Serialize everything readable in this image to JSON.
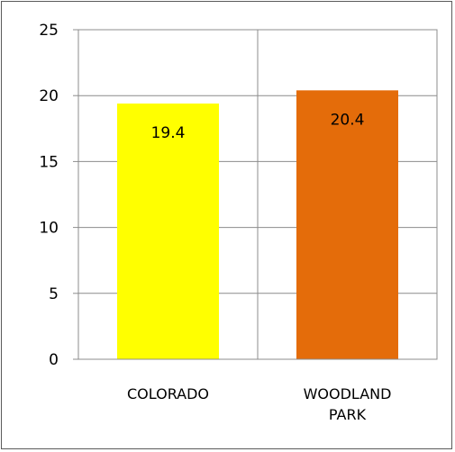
{
  "chart_data": {
    "type": "bar",
    "categories": [
      "COLORADO",
      "WOODLAND PARK"
    ],
    "category_lines": [
      [
        "COLORADO"
      ],
      [
        "WOODLAND",
        "PARK"
      ]
    ],
    "values": [
      19.4,
      20.4
    ],
    "data_labels": [
      "19.4",
      "20.4"
    ],
    "bar_colors": [
      "#ffff00",
      "#e46c0a"
    ],
    "ylim": [
      0,
      25
    ],
    "yticks": [
      0,
      5,
      10,
      15,
      20,
      25
    ],
    "grid": true,
    "legend": "none",
    "title": "",
    "xlabel": "",
    "ylabel": ""
  }
}
